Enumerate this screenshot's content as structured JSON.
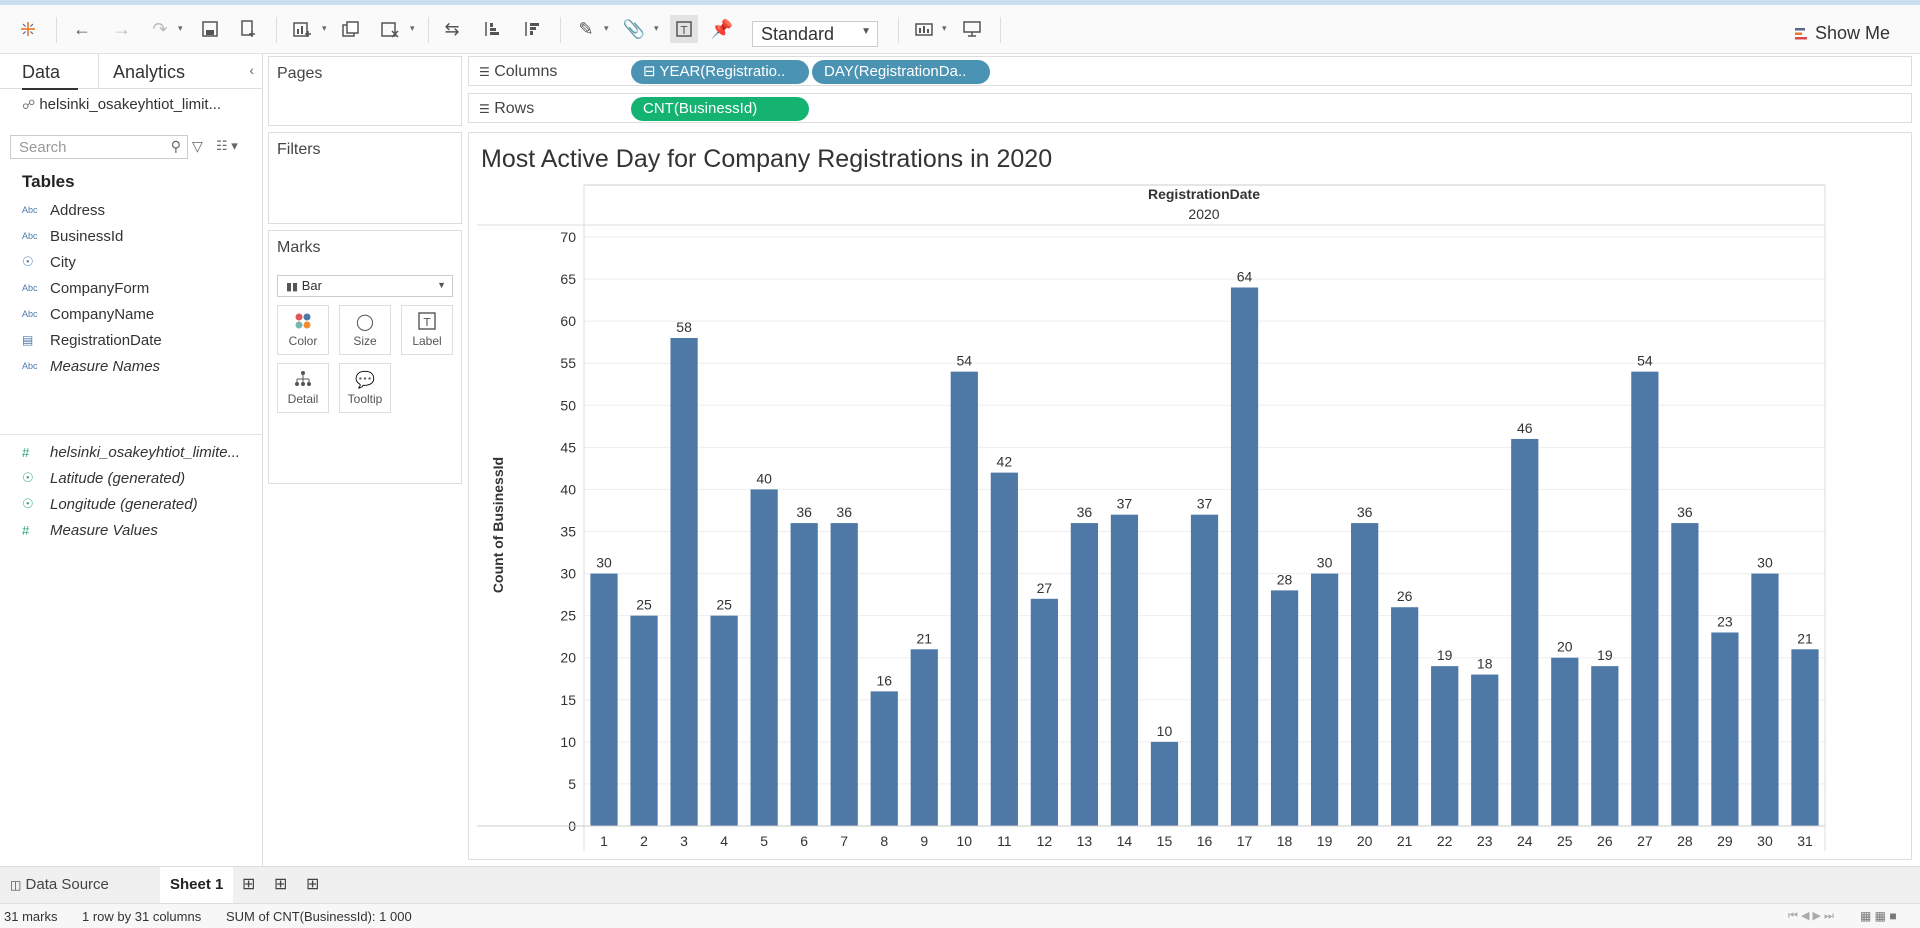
{
  "toolbar": {
    "fit_select": "Standard",
    "show_me": "Show Me"
  },
  "data_pane": {
    "tabs": [
      "Data",
      "Analytics"
    ],
    "datasource": "helsinki_osakeyhtiot_limit...",
    "search_placeholder": "Search",
    "tables_heading": "Tables",
    "fields": [
      {
        "type": "Abc",
        "name": "Address",
        "italic": false
      },
      {
        "type": "Abc",
        "name": "BusinessId",
        "italic": false
      },
      {
        "type": "geo",
        "name": "City",
        "italic": false
      },
      {
        "type": "Abc",
        "name": "CompanyForm",
        "italic": false
      },
      {
        "type": "Abc",
        "name": "CompanyName",
        "italic": false
      },
      {
        "type": "date",
        "name": "RegistrationDate",
        "italic": false
      },
      {
        "type": "Abc",
        "name": "Measure Names",
        "italic": true
      }
    ],
    "measures": [
      {
        "type": "#",
        "name": "helsinki_osakeyhtiot_limite...",
        "italic": true
      },
      {
        "type": "geo",
        "name": "Latitude (generated)",
        "italic": true
      },
      {
        "type": "geo",
        "name": "Longitude (generated)",
        "italic": true
      },
      {
        "type": "#",
        "name": "Measure Values",
        "italic": true
      }
    ]
  },
  "cards": {
    "pages": "Pages",
    "filters": "Filters",
    "marks": "Marks",
    "mark_type": "Bar",
    "mark_buttons": [
      "Color",
      "Size",
      "Label",
      "Detail",
      "Tooltip"
    ]
  },
  "shelves": {
    "columns_label": "Columns",
    "rows_label": "Rows",
    "column_pills": [
      "⊟ YEAR(Registratio..",
      "DAY(RegistrationDa.."
    ],
    "row_pills": [
      "CNT(BusinessId)"
    ]
  },
  "viz": {
    "title": "Most Active Day for Company Registrations in 2020"
  },
  "chart_data": {
    "type": "bar",
    "title": "Most Active Day for Company Registrations in 2020",
    "header_field": "RegistrationDate",
    "header_value": "2020",
    "ylabel": "Count of BusinessId",
    "xlabel": "",
    "ylim": [
      0,
      70
    ],
    "yticks": [
      0,
      5,
      10,
      15,
      20,
      25,
      30,
      35,
      40,
      45,
      50,
      55,
      60,
      65,
      70
    ],
    "categories": [
      "1",
      "2",
      "3",
      "4",
      "5",
      "6",
      "7",
      "8",
      "9",
      "10",
      "11",
      "12",
      "13",
      "14",
      "15",
      "16",
      "17",
      "18",
      "19",
      "20",
      "21",
      "22",
      "23",
      "24",
      "25",
      "26",
      "27",
      "28",
      "29",
      "30",
      "31"
    ],
    "values": [
      30,
      25,
      58,
      25,
      40,
      36,
      36,
      16,
      21,
      54,
      42,
      27,
      36,
      37,
      10,
      37,
      64,
      28,
      30,
      36,
      26,
      19,
      18,
      46,
      20,
      19,
      54,
      36,
      23,
      30,
      21
    ],
    "bar_color": "#4e79a7",
    "grid": true
  },
  "bottom_tabs": {
    "data_source": "Data Source",
    "sheet": "Sheet 1"
  },
  "status": {
    "marks": "31 marks",
    "dims": "1 row by 31 columns",
    "sum": "SUM of CNT(BusinessId): 1 000"
  }
}
